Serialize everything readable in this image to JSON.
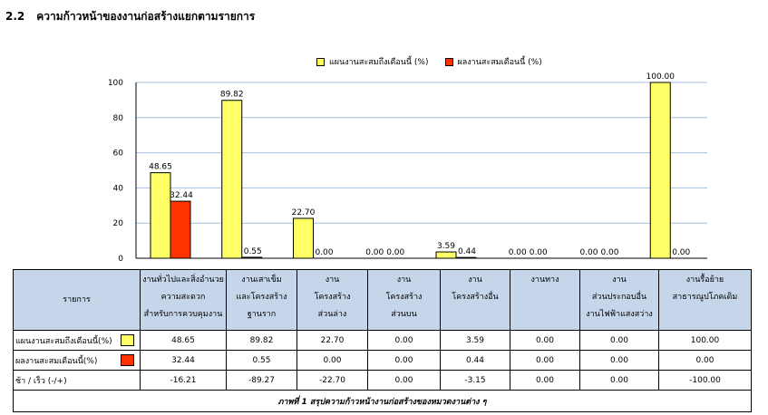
{
  "section": {
    "number": "2.2",
    "title": "ความก้าวหน้าของงานก่อสร้างแยกตามรายการ"
  },
  "colors": {
    "plan": "#ffff66",
    "actual": "#ff3300",
    "header_bg": "#c5d5ea",
    "grid": "#a6bfe0"
  },
  "chart_data": {
    "type": "bar",
    "categories": [
      "งานทั่วไปและสิ่งอำนวยความสะดวกสำหรับการควบคุมงาน",
      "งานเสาเข็มและโครงสร้างฐานราก",
      "งานโครงสร้างส่วนล่าง",
      "งานโครงสร้างส่วนบน",
      "งานโครงสร้างอื่น",
      "งานทาง",
      "งานส่วนประกอบอื่น งานไฟฟ้าแสงสว่าง",
      "งานรื้อย้ายสาธารณูปโภคเดิม"
    ],
    "series": [
      {
        "name": "แผนงานสะสมถึงเดือนนี้ (%)",
        "color": "#ffff66",
        "values": [
          48.65,
          89.82,
          22.7,
          0.0,
          3.59,
          0.0,
          0.0,
          100.0
        ],
        "labels": [
          "48.65",
          "89.82",
          "22.70",
          "0.00",
          "3.59",
          "0.00",
          "0.00",
          "100.00"
        ]
      },
      {
        "name": "ผลงานสะสมเดือนนี้ (%)",
        "color": "#ff3300",
        "values": [
          32.44,
          0.55,
          0.0,
          0.0,
          0.44,
          0.0,
          0.0,
          0.0
        ],
        "labels": [
          "32.44",
          "0.55",
          "0.00",
          "0.00",
          "0.44",
          "0.00",
          "0.00",
          "0.00"
        ]
      }
    ],
    "ylim": [
      0,
      100
    ],
    "yticks": [
      "0",
      "20",
      "40",
      "60",
      "80",
      "100"
    ],
    "grid": true,
    "legend": "top"
  },
  "table": {
    "corner": "รายการ",
    "columns": [
      [
        "งานทั่วไปและสิ่งอำนวย",
        "ความสะดวก",
        "สำหรับการควบคุมงาน"
      ],
      [
        "งานเสาเข็ม",
        "และโครงสร้าง",
        "ฐานราก"
      ],
      [
        "งาน",
        "โครงสร้าง",
        "ส่วนล่าง"
      ],
      [
        "งาน",
        "โครงสร้าง",
        "ส่วนบน"
      ],
      [
        "งาน",
        "โครงสร้างอื่น",
        ""
      ],
      [
        "งานทาง",
        "",
        ""
      ],
      [
        "งาน",
        "ส่วนประกอบอื่น",
        "งานไฟฟ้าแสงสว่าง"
      ],
      [
        "งานรื้อย้าย",
        "สาธารณูปโภคเดิม",
        ""
      ]
    ],
    "rows": [
      {
        "label": "แผนงานสะสมถึงเดือนนี้(%)",
        "swatch": "#ffff66",
        "values": [
          "48.65",
          "89.82",
          "22.70",
          "0.00",
          "3.59",
          "0.00",
          "0.00",
          "100.00"
        ]
      },
      {
        "label": "ผลงานสะสมเดือนนี้(%)",
        "swatch": "#ff3300",
        "values": [
          "32.44",
          "0.55",
          "0.00",
          "0.00",
          "0.44",
          "0.00",
          "0.00",
          "0.00"
        ]
      },
      {
        "label": "ช้า / เร็ว  (-/+)",
        "swatch": "",
        "values": [
          "-16.21",
          "-89.27",
          "-22.70",
          "0.00",
          "-3.15",
          "0.00",
          "0.00",
          "-100.00"
        ]
      }
    ],
    "caption": "ภาพที่ 1 สรุปความก้าวหน้างานก่อสร้างของหมวดงานต่าง ๆ"
  }
}
